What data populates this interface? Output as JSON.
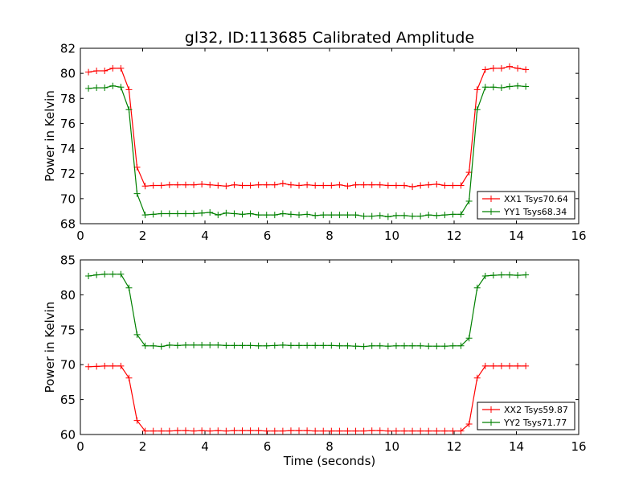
{
  "figure": {
    "title": "gl32, ID:113685 Calibrated Amplitude"
  },
  "chart_data": [
    {
      "type": "line",
      "title": "gl32, ID:113685 Calibrated Amplitude",
      "xlabel": "",
      "ylabel": "Power in Kelvin",
      "xlim": [
        0,
        16
      ],
      "ylim": [
        68,
        82
      ],
      "xticks": [
        0,
        2,
        4,
        6,
        8,
        10,
        12,
        14,
        16
      ],
      "yticks": [
        68,
        70,
        72,
        74,
        76,
        78,
        80,
        82
      ],
      "grid": false,
      "legend_position": "lower-right",
      "x": [
        0.26,
        0.52,
        0.78,
        1.04,
        1.3,
        1.56,
        1.82,
        2.08,
        2.34,
        2.6,
        2.86,
        3.12,
        3.38,
        3.64,
        3.9,
        4.16,
        4.42,
        4.68,
        4.94,
        5.2,
        5.46,
        5.72,
        5.98,
        6.24,
        6.5,
        6.76,
        7.02,
        7.28,
        7.54,
        7.8,
        8.06,
        8.32,
        8.58,
        8.84,
        9.1,
        9.36,
        9.62,
        9.88,
        10.14,
        10.4,
        10.66,
        10.92,
        11.18,
        11.44,
        11.7,
        11.96,
        12.22,
        12.48,
        12.74,
        13.0,
        13.26,
        13.52,
        13.78,
        14.04,
        14.3
      ],
      "series": [
        {
          "name": "XX1 Tsys70.64",
          "color": "#ff0000",
          "values": [
            80.1,
            80.2,
            80.2,
            80.4,
            80.4,
            78.7,
            72.5,
            71.0,
            71.05,
            71.05,
            71.1,
            71.1,
            71.1,
            71.1,
            71.15,
            71.1,
            71.05,
            71.0,
            71.1,
            71.05,
            71.05,
            71.1,
            71.1,
            71.1,
            71.2,
            71.1,
            71.05,
            71.1,
            71.05,
            71.05,
            71.05,
            71.1,
            71.0,
            71.1,
            71.1,
            71.1,
            71.1,
            71.05,
            71.05,
            71.05,
            70.95,
            71.05,
            71.1,
            71.15,
            71.05,
            71.05,
            71.05,
            72.1,
            78.7,
            80.3,
            80.4,
            80.4,
            80.55,
            80.4,
            80.3
          ]
        },
        {
          "name": "YY1 Tsys68.34",
          "color": "#008000",
          "values": [
            78.8,
            78.85,
            78.85,
            79.0,
            78.9,
            77.1,
            70.4,
            68.7,
            68.75,
            68.8,
            68.8,
            68.8,
            68.8,
            68.8,
            68.85,
            68.9,
            68.7,
            68.85,
            68.8,
            68.75,
            68.8,
            68.7,
            68.7,
            68.7,
            68.8,
            68.75,
            68.7,
            68.75,
            68.65,
            68.7,
            68.7,
            68.7,
            68.7,
            68.7,
            68.6,
            68.6,
            68.65,
            68.55,
            68.65,
            68.65,
            68.6,
            68.6,
            68.7,
            68.65,
            68.7,
            68.75,
            68.75,
            69.8,
            77.1,
            78.9,
            78.9,
            78.85,
            78.95,
            79.0,
            78.95
          ]
        }
      ]
    },
    {
      "type": "line",
      "title": "",
      "xlabel": "Time (seconds)",
      "ylabel": "Power in Kelvin",
      "xlim": [
        0,
        16
      ],
      "ylim": [
        60,
        85
      ],
      "xticks": [
        0,
        2,
        4,
        6,
        8,
        10,
        12,
        14,
        16
      ],
      "yticks": [
        60,
        65,
        70,
        75,
        80,
        85
      ],
      "grid": false,
      "legend_position": "lower-right",
      "x": [
        0.26,
        0.52,
        0.78,
        1.04,
        1.3,
        1.56,
        1.82,
        2.08,
        2.34,
        2.6,
        2.86,
        3.12,
        3.38,
        3.64,
        3.9,
        4.16,
        4.42,
        4.68,
        4.94,
        5.2,
        5.46,
        5.72,
        5.98,
        6.24,
        6.5,
        6.76,
        7.02,
        7.28,
        7.54,
        7.8,
        8.06,
        8.32,
        8.58,
        8.84,
        9.1,
        9.36,
        9.62,
        9.88,
        10.14,
        10.4,
        10.66,
        10.92,
        11.18,
        11.44,
        11.7,
        11.96,
        12.22,
        12.48,
        12.74,
        13.0,
        13.26,
        13.52,
        13.78,
        14.04,
        14.3
      ],
      "series": [
        {
          "name": "XX2 Tsys59.87",
          "color": "#ff0000",
          "values": [
            69.7,
            69.75,
            69.8,
            69.8,
            69.8,
            68.1,
            62.0,
            60.5,
            60.5,
            60.5,
            60.5,
            60.55,
            60.55,
            60.5,
            60.55,
            60.5,
            60.55,
            60.5,
            60.55,
            60.55,
            60.55,
            60.55,
            60.5,
            60.5,
            60.5,
            60.55,
            60.55,
            60.55,
            60.5,
            60.5,
            60.5,
            60.5,
            60.5,
            60.5,
            60.5,
            60.55,
            60.55,
            60.5,
            60.5,
            60.5,
            60.5,
            60.5,
            60.5,
            60.5,
            60.5,
            60.5,
            60.5,
            61.5,
            68.1,
            69.8,
            69.8,
            69.8,
            69.8,
            69.8,
            69.8
          ]
        },
        {
          "name": "YY2 Tsys71.77",
          "color": "#008000",
          "values": [
            82.7,
            82.85,
            82.95,
            82.95,
            82.95,
            81.0,
            74.3,
            72.7,
            72.7,
            72.6,
            72.8,
            72.75,
            72.8,
            72.8,
            72.8,
            72.8,
            72.8,
            72.75,
            72.75,
            72.75,
            72.75,
            72.7,
            72.7,
            72.75,
            72.8,
            72.75,
            72.75,
            72.75,
            72.75,
            72.75,
            72.75,
            72.7,
            72.7,
            72.65,
            72.6,
            72.7,
            72.7,
            72.65,
            72.7,
            72.7,
            72.7,
            72.7,
            72.65,
            72.65,
            72.65,
            72.7,
            72.7,
            73.8,
            81.0,
            82.7,
            82.8,
            82.85,
            82.85,
            82.8,
            82.85
          ]
        }
      ]
    }
  ]
}
